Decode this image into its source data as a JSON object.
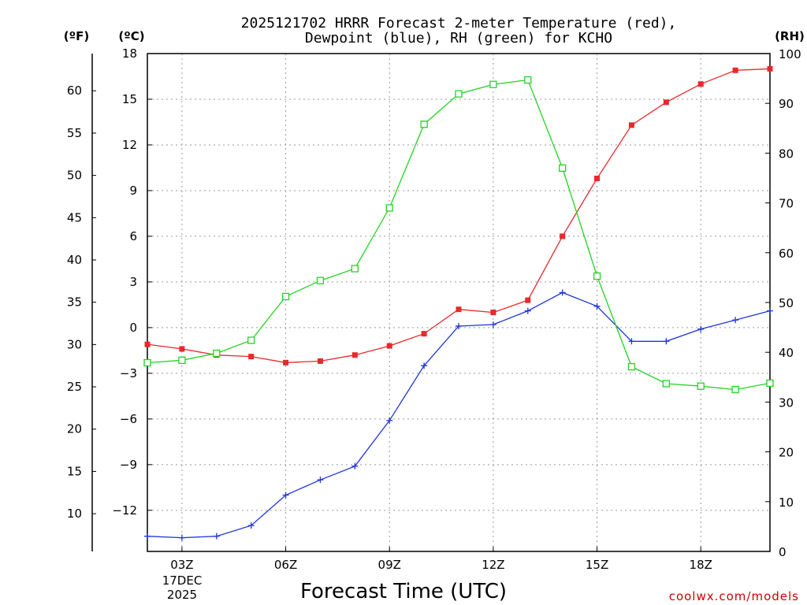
{
  "chart_data": {
    "type": "line",
    "title": [
      "2025121702 HRRR Forecast 2-meter Temperature (red),",
      "Dewpoint (blue), RH (green) for KCHO"
    ],
    "xlabel": "Forecast Time (UTC)",
    "date_label": [
      "17DEC",
      "2025"
    ],
    "credit": "coolwx.com/models",
    "units": {
      "fahrenheit": "(ºF)",
      "celsius": "(ºC)",
      "rh": "(RH)"
    },
    "x": [
      2,
      3,
      4,
      5,
      6,
      7,
      8,
      9,
      10,
      11,
      12,
      13,
      14,
      15,
      16,
      17,
      18,
      19,
      20
    ],
    "xlim": [
      2,
      20
    ],
    "x_ticks": [
      {
        "value": 3,
        "label": "03Z"
      },
      {
        "value": 6,
        "label": "06Z"
      },
      {
        "value": 9,
        "label": "09Z"
      },
      {
        "value": 12,
        "label": "12Z"
      },
      {
        "value": 15,
        "label": "15Z"
      },
      {
        "value": 18,
        "label": "18Z"
      }
    ],
    "y_celsius_lim": [
      -14.7,
      18
    ],
    "y_celsius_ticks": [
      {
        "value": 18,
        "label": "18"
      },
      {
        "value": 15,
        "label": "15"
      },
      {
        "value": 12,
        "label": "12"
      },
      {
        "value": 9,
        "label": "9"
      },
      {
        "value": 6,
        "label": "6"
      },
      {
        "value": 3,
        "label": "3"
      },
      {
        "value": 0,
        "label": "0"
      },
      {
        "value": -3,
        "label": "−3"
      },
      {
        "value": -6,
        "label": "−6"
      },
      {
        "value": -9,
        "label": "−9"
      },
      {
        "value": -12,
        "label": "−12"
      }
    ],
    "y_fahrenheit_ticks": [
      {
        "value": 60,
        "label": "60"
      },
      {
        "value": 55,
        "label": "55"
      },
      {
        "value": 50,
        "label": "50"
      },
      {
        "value": 45,
        "label": "45"
      },
      {
        "value": 40,
        "label": "40"
      },
      {
        "value": 35,
        "label": "35"
      },
      {
        "value": 30,
        "label": "30"
      },
      {
        "value": 25,
        "label": "25"
      },
      {
        "value": 20,
        "label": "20"
      },
      {
        "value": 15,
        "label": "15"
      },
      {
        "value": 10,
        "label": "10"
      }
    ],
    "y_rh_lim": [
      0,
      100
    ],
    "y_rh_ticks": [
      {
        "value": 100,
        "label": "100"
      },
      {
        "value": 90,
        "label": "90"
      },
      {
        "value": 80,
        "label": "80"
      },
      {
        "value": 70,
        "label": "70"
      },
      {
        "value": 60,
        "label": "60"
      },
      {
        "value": 50,
        "label": "50"
      },
      {
        "value": 40,
        "label": "40"
      },
      {
        "value": 30,
        "label": "30"
      },
      {
        "value": 20,
        "label": "20"
      },
      {
        "value": 10,
        "label": "10"
      },
      {
        "value": 0,
        "label": "0"
      }
    ],
    "series": [
      {
        "name": "Temperature",
        "axis": "celsius",
        "color": "#e8282b",
        "marker": "filled-square",
        "values": [
          -1.1,
          -1.4,
          -1.8,
          -1.9,
          -2.3,
          -2.2,
          -1.8,
          -1.2,
          -0.4,
          1.2,
          1.0,
          1.8,
          6.0,
          9.8,
          13.3,
          14.8,
          16.0,
          16.9,
          17.0
        ]
      },
      {
        "name": "Dewpoint",
        "axis": "celsius",
        "color": "#1f35e0",
        "marker": "plus",
        "values": [
          -13.7,
          -13.8,
          -13.7,
          -13.0,
          -11.0,
          -10.0,
          -9.1,
          -6.1,
          -2.5,
          0.1,
          0.2,
          1.1,
          2.3,
          1.4,
          -0.9,
          -0.9,
          -0.1,
          0.5,
          1.1
        ]
      },
      {
        "name": "RH",
        "axis": "rh",
        "color": "#22d422",
        "marker": "open-square",
        "values": [
          37.9,
          38.4,
          39.8,
          42.4,
          51.2,
          54.4,
          56.8,
          69.0,
          85.8,
          91.9,
          93.8,
          94.7,
          77.0,
          55.3,
          37.1,
          33.7,
          33.2,
          32.5,
          33.8
        ]
      }
    ]
  }
}
